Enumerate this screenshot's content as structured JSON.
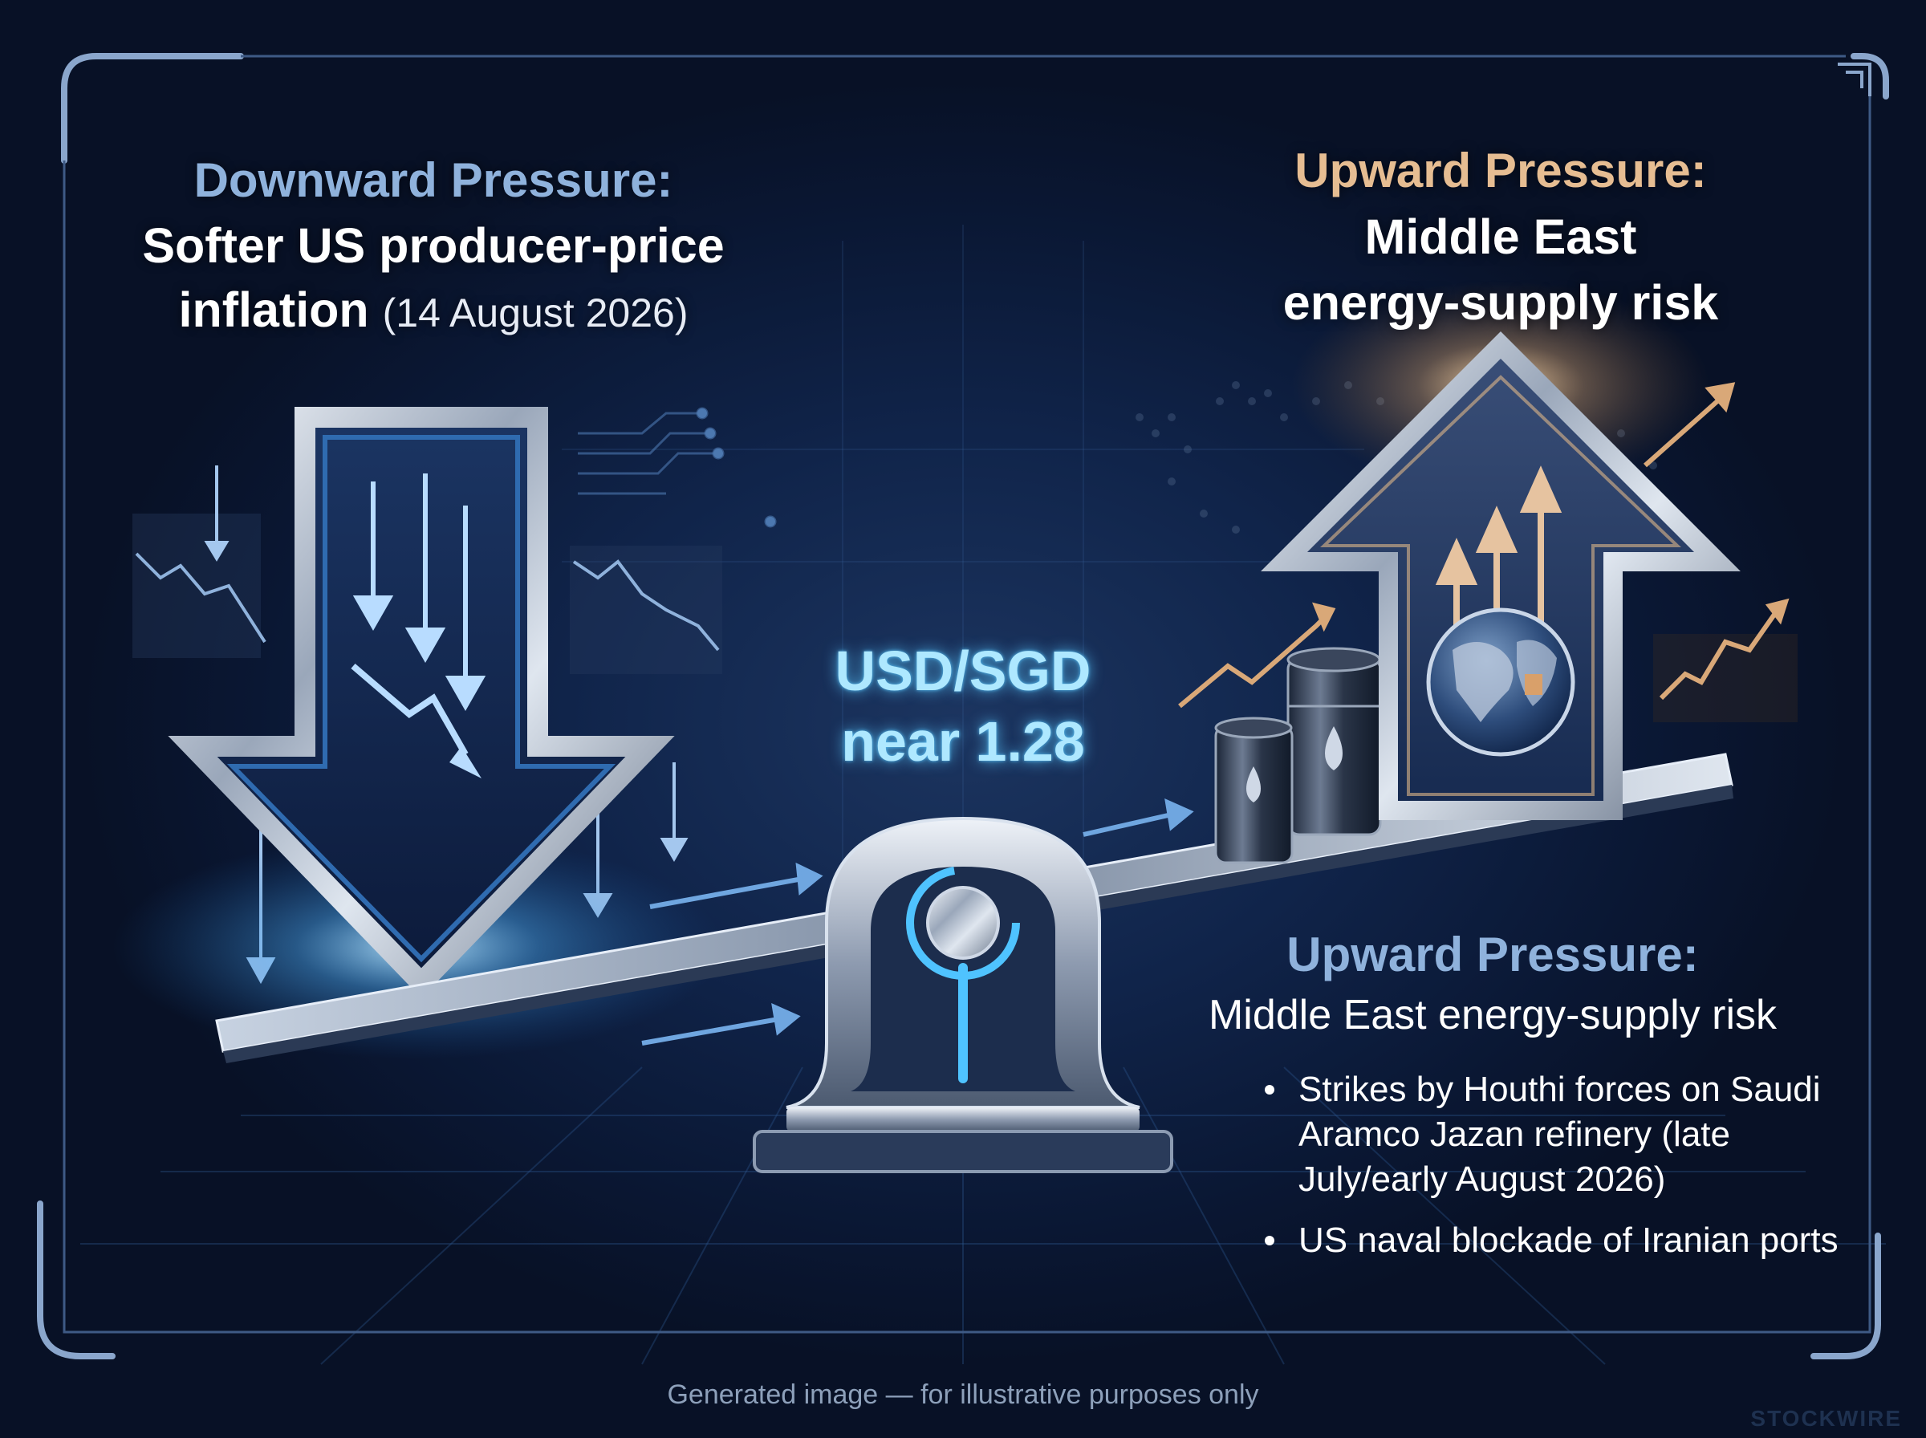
{
  "left_panel": {
    "heading": "Downward Pressure:",
    "body_line1": "Softer US producer-price",
    "body_line2": "inflation",
    "date": "(14 August 2026)"
  },
  "right_panel": {
    "heading": "Upward Pressure:",
    "body_line1": "Middle East",
    "body_line2": "energy-supply risk"
  },
  "center": {
    "pair": "USD/SGD",
    "level": "near 1.28"
  },
  "detail": {
    "heading": "Upward Pressure:",
    "subheading": "Middle East energy-supply risk",
    "bullets": [
      "Strikes by Houthi forces on Saudi Aramco Jazan refinery (late July/early August 2026)",
      "US naval blockade of Iranian ports"
    ]
  },
  "caption": "Generated image — for illustrative purposes only",
  "watermark": "STOCKWIRE",
  "colors": {
    "background": "#0a1630",
    "accent_blue": "#8fb2dc",
    "accent_gold": "#e6bd92",
    "glow_cyan": "#aee8ff"
  },
  "icons": [
    "frame-corner-icon",
    "down-arrow-icon",
    "up-arrow-icon",
    "seesaw-icon",
    "oil-barrel-icon",
    "globe-icon",
    "trend-line-icon",
    "world-map-icon"
  ]
}
